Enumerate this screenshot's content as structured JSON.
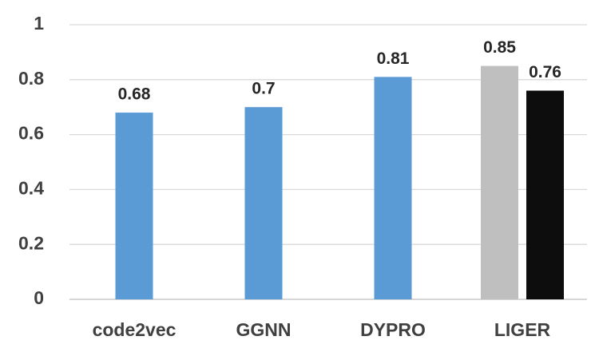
{
  "chart_data": {
    "type": "bar",
    "categories": [
      "code2vec",
      "GGNN",
      "DYPRO",
      "LIGER"
    ],
    "series": [
      {
        "color": "#5b9bd5",
        "values": [
          0.68,
          0.7,
          0.81,
          null
        ]
      },
      {
        "color": "#bfbfbf",
        "values": [
          null,
          null,
          null,
          0.85
        ]
      },
      {
        "color": "#0d0d0d",
        "values": [
          null,
          null,
          null,
          0.76
        ]
      }
    ],
    "ylim": [
      0,
      1
    ],
    "yticks": [
      0,
      0.2,
      0.4,
      0.6,
      0.8,
      1
    ],
    "grid": true
  }
}
